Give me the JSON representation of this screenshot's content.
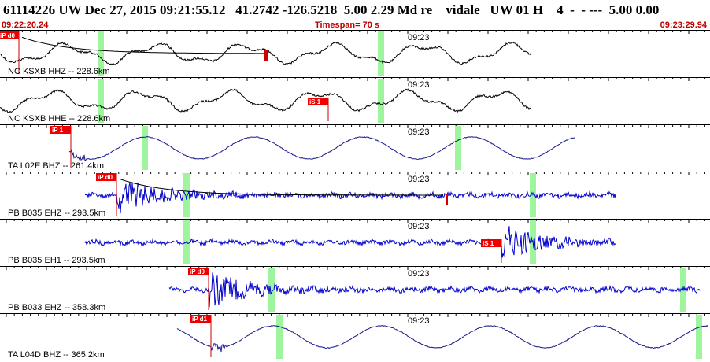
{
  "header": {
    "title": "61114226 UW Dec 27, 2015 09:21:55.12   41.2742 -126.5218  5.00 2.29 Md re    vidale   UW 01 H    4  -  - ---  5.00 0.00",
    "start_time": "09:22:20.24",
    "timespan": "Timespan=  70 s",
    "end_time": "09:23:29.94"
  },
  "colors": {
    "accent": "#cc0000",
    "pick_fill": "#ee0000",
    "green_marker": "#9ef59e",
    "trace_black": "#000000",
    "trace_blue": "#0000cc"
  },
  "traces": [
    {
      "label": "NC KSXB HHZ -- 228.6km",
      "pick": "iP d0",
      "time_label": "09:23",
      "color": "#000000",
      "style": "lowfreq",
      "pickx": 24,
      "greens": [
        128,
        484
      ],
      "start": 0,
      "end": 675,
      "pick_below": false
    },
    {
      "label": "NC KSXB HHE -- 228.6km",
      "pick": "iS 1",
      "time_label": "09:23",
      "color": "#000000",
      "style": "lowfreq",
      "pickx": 417,
      "greens": [
        128,
        484
      ],
      "start": 0,
      "end": 675,
      "pick_below": true
    },
    {
      "label": "TA L02E BHZ -- 261.4km",
      "pick": "iP 1",
      "time_label": "09:23",
      "color": "#1a1a8a",
      "style": "smooth",
      "pickx": 90,
      "greens": [
        184,
        582
      ],
      "start": 88,
      "end": 730,
      "pick_below": false
    },
    {
      "label": "PB B035 EHZ -- 293.5km",
      "pick": "iP d0",
      "time_label": "09:23",
      "color": "#0000cc",
      "style": "hf",
      "pickx": 148,
      "greens": [
        237,
        677
      ],
      "start": 108,
      "end": 782,
      "pick_below": false
    },
    {
      "label": "PB B035 EH1 -- 293.5km",
      "pick": "iS 1",
      "time_label": "09:23",
      "color": "#0000cc",
      "style": "hf",
      "pickx": 637,
      "greens": [
        237,
        677
      ],
      "start": 108,
      "end": 782,
      "pick_below": true
    },
    {
      "label": "PB B033 EHZ -- 358.3km",
      "pick": "iP d0",
      "time_label": "09:23",
      "color": "#0000cc",
      "style": "hf2",
      "pickx": 265,
      "greens": [
        345,
        868
      ],
      "start": 215,
      "end": 890,
      "pick_below": false
    },
    {
      "label": "TA L04D BHZ -- 365.2km",
      "pick": "iP d1",
      "time_label": "09:23",
      "color": "#1a1a8a",
      "style": "smooth2",
      "pickx": 268,
      "greens": [
        355,
        888
      ],
      "start": 225,
      "end": 900,
      "pick_below": false
    }
  ]
}
